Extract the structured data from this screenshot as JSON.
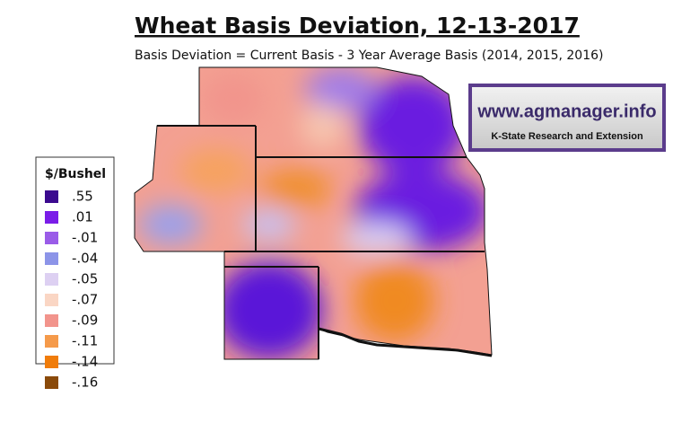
{
  "title": "Wheat Basis Deviation, 12-13-2017",
  "subtitle": "Basis Deviation = Current Basis - 3 Year Average Basis (2014, 2015, 2016)",
  "legend": {
    "title": "$/Bushel",
    "items": [
      {
        "label": ".55",
        "color": "#3b0a8f"
      },
      {
        "label": ".01",
        "color": "#7a1de8"
      },
      {
        "label": "-.01",
        "color": "#9a5ce8"
      },
      {
        "label": "-.04",
        "color": "#8c94e8"
      },
      {
        "label": "-.05",
        "color": "#ddd0f2"
      },
      {
        "label": "-.07",
        "color": "#fad6c4"
      },
      {
        "label": "-.09",
        "color": "#f2948c"
      },
      {
        "label": "-.11",
        "color": "#f59a4a"
      },
      {
        "label": "-.14",
        "color": "#f07c0a"
      },
      {
        "label": "-.16",
        "color": "#8a4a0a"
      }
    ]
  },
  "logo": {
    "url": "www.agmanager.info",
    "org": "K-State Research and Extension"
  }
}
